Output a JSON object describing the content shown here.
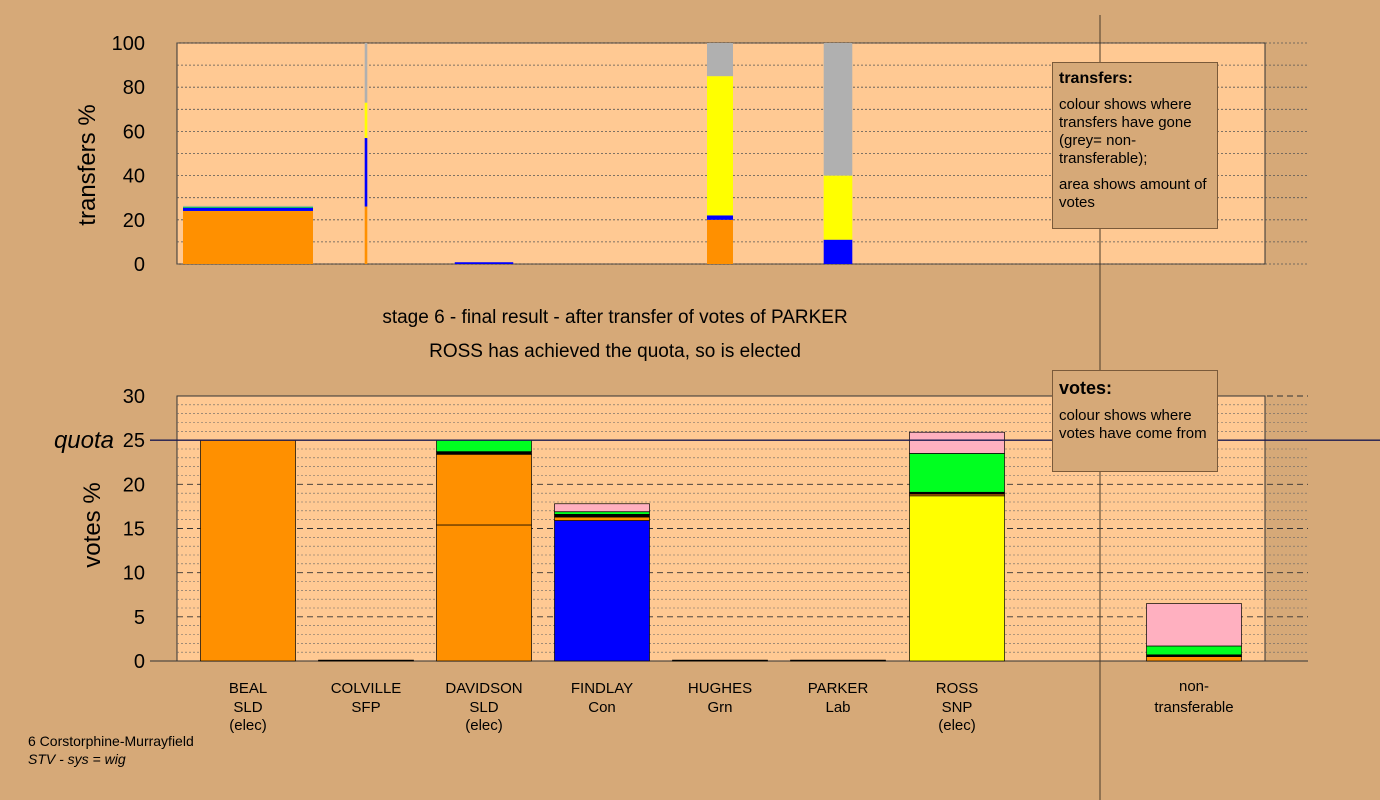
{
  "colors": {
    "background": "#d6a978",
    "plot_bg": "#ffc993",
    "SLD": "#ff9000",
    "Con": "#0000ff",
    "SNP": "#ffff00",
    "Grn": "#00ff20",
    "Lab": "#ffb0c0",
    "SFP": "#000000",
    "nontransferable": "#b0b0b0"
  },
  "captions": {
    "line1": "stage 6 - final result - after transfer of votes of PARKER",
    "line2": "ROSS has achieved the quota, so is elected"
  },
  "legend_transfers": {
    "title": "transfers:",
    "text1": "colour shows where transfers have gone (grey= non-transferable);",
    "text2": "area shows amount of votes"
  },
  "legend_votes": {
    "title": "votes:",
    "text1": "colour shows where votes have come from"
  },
  "footer": {
    "line1": "6 Corstorphine-Murrayfield",
    "line2": "STV - sys = wig"
  },
  "chart_data": [
    {
      "type": "bar",
      "id": "transfers",
      "ylabel": "transfers %",
      "ylim": [
        0,
        100
      ],
      "yticks": [
        0,
        20,
        40,
        60,
        80,
        100
      ],
      "grid": true,
      "bars": [
        {
          "candidate": "BEAL",
          "width": 1.0,
          "segments": [
            {
              "party": "SLD",
              "value": 24
            },
            {
              "party": "Con",
              "value": 1.5
            },
            {
              "party": "Grn",
              "value": 0.5
            },
            {
              "party": "nontransferable",
              "value": 0.3
            }
          ]
        },
        {
          "candidate": "COLVILLE",
          "width": 0.02,
          "segments": [
            {
              "party": "SLD",
              "value": 26
            },
            {
              "party": "Con",
              "value": 31
            },
            {
              "party": "SNP",
              "value": 16
            },
            {
              "party": "nontransferable",
              "value": 27
            }
          ]
        },
        {
          "candidate": "DAVIDSON",
          "width": 0.45,
          "segments": [
            {
              "party": "Con",
              "value": 0.8
            }
          ]
        },
        {
          "candidate": "HUGHES",
          "width": 0.2,
          "segments": [
            {
              "party": "SLD",
              "value": 20
            },
            {
              "party": "Con",
              "value": 2
            },
            {
              "party": "SNP",
              "value": 63
            },
            {
              "party": "nontransferable",
              "value": 15
            }
          ]
        },
        {
          "candidate": "PARKER",
          "width": 0.22,
          "segments": [
            {
              "party": "Con",
              "value": 11
            },
            {
              "party": "SNP",
              "value": 29
            },
            {
              "party": "nontransferable",
              "value": 60
            }
          ]
        }
      ]
    },
    {
      "type": "bar",
      "id": "votes",
      "ylabel": "votes %",
      "ylim": [
        0,
        30
      ],
      "yticks": [
        0,
        5,
        10,
        15,
        20,
        25,
        30
      ],
      "quota": 25,
      "quota_label": "quota",
      "grid": true,
      "candidates": [
        {
          "name": "BEAL",
          "party": "SLD",
          "status": "(elec)",
          "segments": [
            {
              "party": "SLD",
              "value": 25
            }
          ]
        },
        {
          "name": "COLVILLE",
          "party": "SFP",
          "status": "",
          "segments": [
            {
              "party": "SFP",
              "value": 0.1
            }
          ]
        },
        {
          "name": "DAVIDSON",
          "party": "SLD",
          "status": "(elec)",
          "segments": [
            {
              "party": "SLD",
              "value": 15.4
            },
            {
              "party": "SLD",
              "value": 8.0
            },
            {
              "party": "SFP",
              "value": 0.3
            },
            {
              "party": "Grn",
              "value": 1.3
            }
          ]
        },
        {
          "name": "FINDLAY",
          "party": "Con",
          "status": "",
          "segments": [
            {
              "party": "Con",
              "value": 15.9
            },
            {
              "party": "SLD",
              "value": 0.4
            },
            {
              "party": "SFP",
              "value": 0.3
            },
            {
              "party": "Grn",
              "value": 0.3
            },
            {
              "party": "Lab",
              "value": 0.9
            }
          ]
        },
        {
          "name": "HUGHES",
          "party": "Grn",
          "status": "",
          "segments": [
            {
              "party": "SFP",
              "value": 0.1
            }
          ]
        },
        {
          "name": "PARKER",
          "party": "Lab",
          "status": "",
          "segments": [
            {
              "party": "SFP",
              "value": 0.1
            }
          ]
        },
        {
          "name": "ROSS",
          "party": "SNP",
          "status": "(elec)",
          "segments": [
            {
              "party": "SNP",
              "value": 18.7
            },
            {
              "party": "SLD",
              "value": 0.2
            },
            {
              "party": "SFP",
              "value": 0.2
            },
            {
              "party": "Grn",
              "value": 4.4
            },
            {
              "party": "Lab",
              "value": 2.4
            }
          ]
        }
      ],
      "nontransferable": {
        "label1": "non-",
        "label2": "transferable",
        "segments": [
          {
            "party": "SLD",
            "value": 0.5
          },
          {
            "party": "SFP",
            "value": 0.2
          },
          {
            "party": "Grn",
            "value": 1.0
          },
          {
            "party": "Lab",
            "value": 4.8
          }
        ]
      }
    }
  ]
}
